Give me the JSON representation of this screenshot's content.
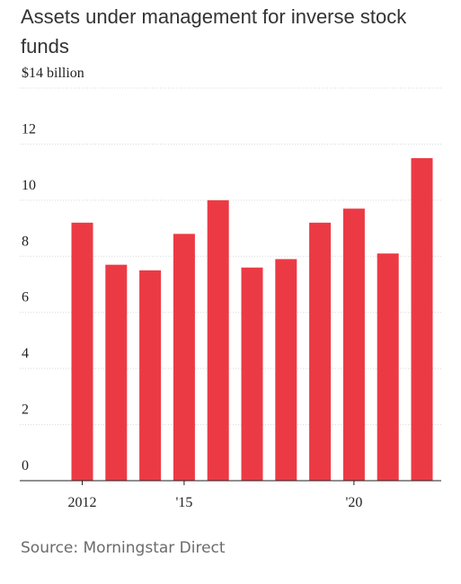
{
  "title": "Assets under management for inverse stock funds",
  "source": "Source: Morningstar Direct",
  "colors": {
    "bar": "#ec3a45",
    "grid": "#d9d9d9",
    "axis": "#222222"
  },
  "chart_data": {
    "type": "bar",
    "title": "Assets under management for inverse stock funds",
    "xlabel": "",
    "ylabel": "",
    "ylim": [
      0,
      14
    ],
    "y_ticks": [
      {
        "value": 14,
        "label": "$14 billion"
      },
      {
        "value": 12,
        "label": "12"
      },
      {
        "value": 10,
        "label": "10"
      },
      {
        "value": 8,
        "label": "8"
      },
      {
        "value": 6,
        "label": "6"
      },
      {
        "value": 4,
        "label": "4"
      },
      {
        "value": 2,
        "label": "2"
      },
      {
        "value": 0,
        "label": "0"
      }
    ],
    "x": [
      2012,
      2013,
      2014,
      2015,
      2016,
      2017,
      2018,
      2019,
      2020,
      2021,
      2022
    ],
    "values": [
      9.2,
      7.7,
      7.5,
      8.8,
      10.0,
      7.6,
      7.9,
      9.2,
      9.7,
      8.1,
      11.5
    ],
    "x_tick_labels": [
      {
        "x": 2012,
        "label": "2012"
      },
      {
        "x": 2015,
        "label": "'15"
      },
      {
        "x": 2020,
        "label": "'20"
      }
    ],
    "grid": true
  }
}
